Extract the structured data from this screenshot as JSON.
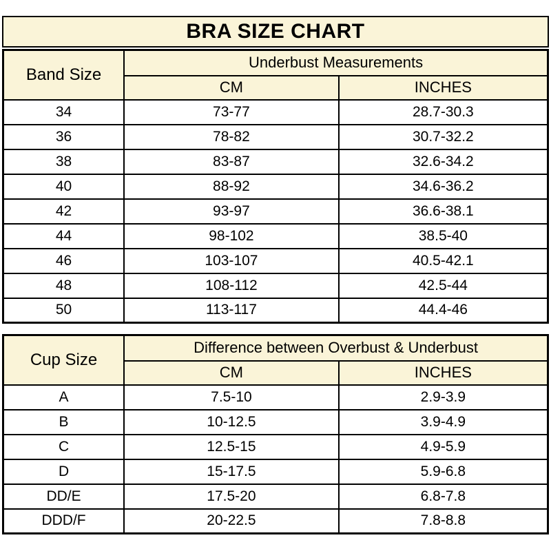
{
  "title": "BRA SIZE CHART",
  "colors": {
    "header_bg": "#faf4d8",
    "border": "#000000",
    "text": "#000000",
    "row_bg": "#ffffff"
  },
  "chart_data": [
    {
      "type": "table",
      "name": "band_size_table",
      "corner_header": "Band Size",
      "group_header": "Underbust Measurements",
      "sub_headers": [
        "CM",
        "INCHES"
      ],
      "rows": [
        [
          "34",
          "73-77",
          "28.7-30.3"
        ],
        [
          "36",
          "78-82",
          "30.7-32.2"
        ],
        [
          "38",
          "83-87",
          "32.6-34.2"
        ],
        [
          "40",
          "88-92",
          "34.6-36.2"
        ],
        [
          "42",
          "93-97",
          "36.6-38.1"
        ],
        [
          "44",
          "98-102",
          "38.5-40"
        ],
        [
          "46",
          "103-107",
          "40.5-42.1"
        ],
        [
          "48",
          "108-112",
          "42.5-44"
        ],
        [
          "50",
          "113-117",
          "44.4-46"
        ]
      ]
    },
    {
      "type": "table",
      "name": "cup_size_table",
      "corner_header": "Cup Size",
      "group_header": "Difference between Overbust & Underbust",
      "sub_headers": [
        "CM",
        "INCHES"
      ],
      "rows": [
        [
          "A",
          "7.5-10",
          "2.9-3.9"
        ],
        [
          "B",
          "10-12.5",
          "3.9-4.9"
        ],
        [
          "C",
          "12.5-15",
          "4.9-5.9"
        ],
        [
          "D",
          "15-17.5",
          "5.9-6.8"
        ],
        [
          "DD/E",
          "17.5-20",
          "6.8-7.8"
        ],
        [
          "DDD/F",
          "20-22.5",
          "7.8-8.8"
        ]
      ]
    }
  ]
}
